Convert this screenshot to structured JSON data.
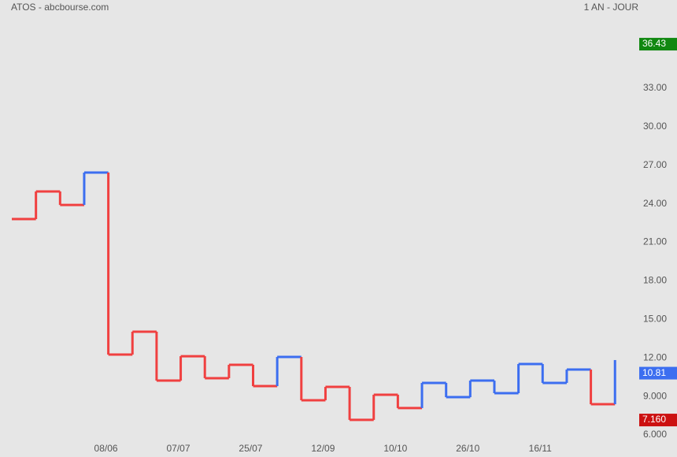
{
  "chart_data": {
    "type": "step",
    "title": "ATOS - abcbourse.com",
    "subtitle": "1 AN - JOUR",
    "x": [
      0,
      1,
      2,
      3,
      4,
      5,
      6,
      7,
      8,
      9,
      10,
      11,
      12,
      13,
      14,
      15,
      16,
      17,
      18,
      19,
      20,
      21,
      22,
      23,
      24,
      25
    ],
    "series": [
      {
        "values": [
          22.81,
          24.96,
          23.91,
          26.43,
          12.26,
          14.04,
          10.23,
          12.13,
          10.42,
          11.46,
          9.8,
          12.07,
          8.7,
          9.74,
          7.17,
          9.13,
          8.09,
          10.05,
          8.94,
          10.23,
          9.25,
          11.52,
          10.05,
          11.09,
          8.39,
          11.83
        ],
        "colors": [
          "#f04040",
          "#f04040",
          "#f04040",
          "#3c6ef0",
          "#f04040",
          "#f04040",
          "#f04040",
          "#f04040",
          "#f04040",
          "#f04040",
          "#f04040",
          "#3c6ef0",
          "#f04040",
          "#f04040",
          "#f04040",
          "#f04040",
          "#f04040",
          "#3c6ef0",
          "#3c6ef0",
          "#3c6ef0",
          "#3c6ef0",
          "#3c6ef0",
          "#3c6ef0",
          "#3c6ef0",
          "#f04040",
          "#3c6ef0"
        ]
      }
    ],
    "xlim": [
      -0.49,
      27.57
    ],
    "xticks": [
      {
        "value": 3.9,
        "label": "08/06"
      },
      {
        "value": 6.9,
        "label": "07/07"
      },
      {
        "value": 9.9,
        "label": "25/07"
      },
      {
        "value": 12.9,
        "label": "12/09"
      },
      {
        "value": 15.9,
        "label": "10/10"
      },
      {
        "value": 18.9,
        "label": "26/10"
      },
      {
        "value": 21.9,
        "label": "16/11"
      }
    ],
    "ylim": [
      4.28,
      39.87
    ],
    "yticks": [
      {
        "value": 6,
        "label": "6.000"
      },
      {
        "value": 9,
        "label": "9.000"
      },
      {
        "value": 12,
        "label": "12.00"
      },
      {
        "value": 15,
        "label": "15.00"
      },
      {
        "value": 18,
        "label": "18.00"
      },
      {
        "value": 21,
        "label": "21.00"
      },
      {
        "value": 24,
        "label": "24.00"
      },
      {
        "value": 27,
        "label": "27.00"
      },
      {
        "value": 30,
        "label": "30.00"
      },
      {
        "value": 33,
        "label": "33.00"
      }
    ],
    "price_tags": [
      {
        "value": 36.43,
        "color": "#118811"
      },
      {
        "value": 10.81,
        "color": "#3c6ef0"
      },
      {
        "value": {
          "value": 7.16,
          "label": "7.160"
        },
        "color": "#cc1111"
      }
    ]
  }
}
